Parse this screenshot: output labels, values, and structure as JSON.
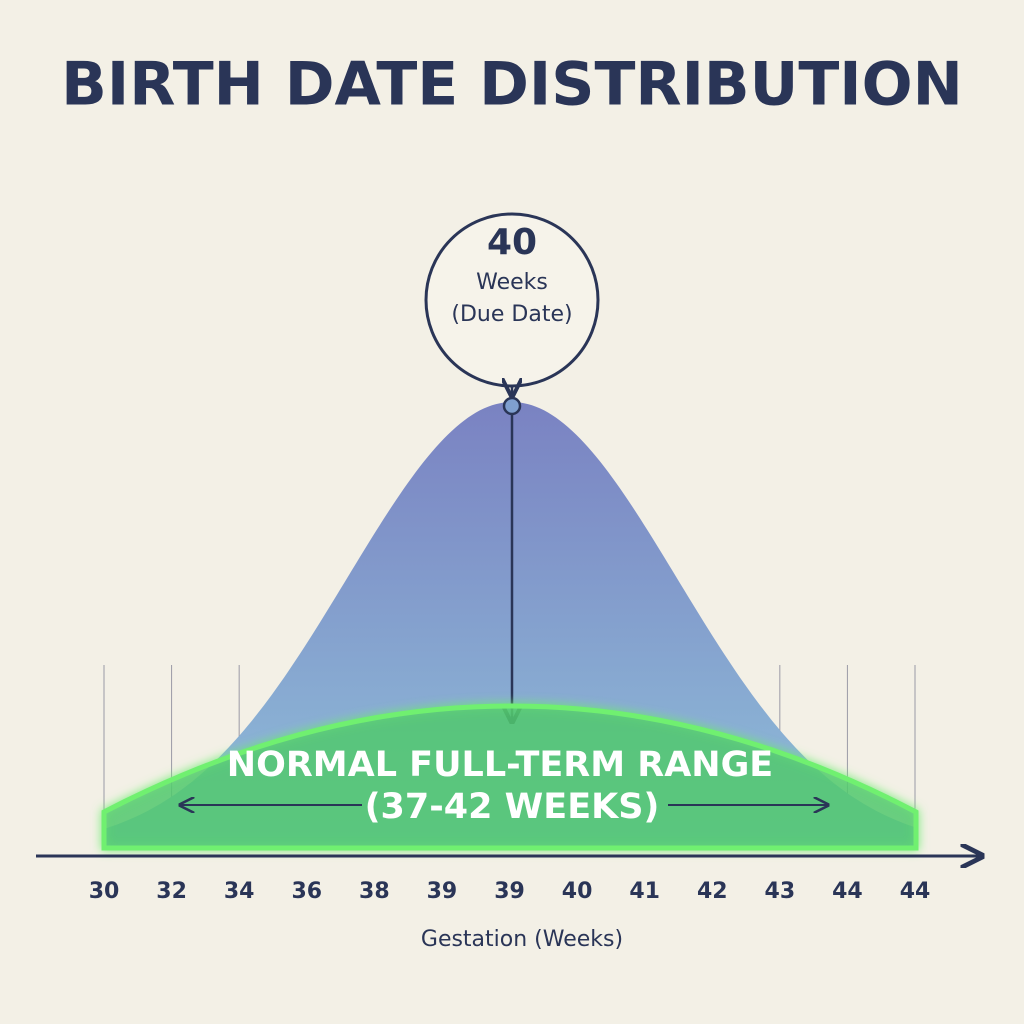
{
  "title": "BIRTH DATE DISTRIBUTION",
  "callout": {
    "number": "40",
    "line1": "Weeks",
    "line2": "(Due Date)"
  },
  "range_label": {
    "line1": "NORMAL FULL-TERM RANGE",
    "line2": "(37-42 WEEKS)"
  },
  "x_axis": {
    "labels": [
      "30",
      "32",
      "34",
      "36",
      "38",
      "39",
      "39",
      "40",
      "41",
      "42",
      "43",
      "44",
      "44"
    ],
    "title": "Gestation (Weeks)"
  }
}
